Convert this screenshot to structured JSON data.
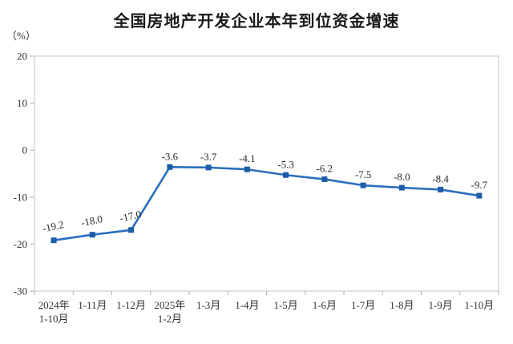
{
  "chart": {
    "title": "全国房地产开发企业本年到位资金增速",
    "unit": "（%）"
  },
  "chart_data": {
    "type": "line",
    "title": "全国房地产开发企业本年到位资金增速",
    "ylabel_unit": "（%）",
    "categories": [
      "2024年\n1-10月",
      "1-11月",
      "1-12月",
      "2025年\n1-2月",
      "1-3月",
      "1-4月",
      "1-5月",
      "1-6月",
      "1-7月",
      "1-8月",
      "1-9月",
      "1-10月"
    ],
    "values": [
      -19.2,
      -18.0,
      -17.0,
      -3.6,
      -3.7,
      -4.1,
      -5.3,
      -6.2,
      -7.5,
      -8.0,
      -8.4,
      -9.7
    ],
    "value_labels": [
      "-19.2",
      "-18.0",
      "-17.0",
      "-3.6",
      "-3.7",
      "-4.1",
      "-5.3",
      "-6.2",
      "-7.5",
      "-8.0",
      "-8.4",
      "-9.7"
    ],
    "rotated_label_count": 3,
    "ylim": [
      -30,
      20
    ],
    "yticks": [
      20,
      10,
      0,
      -10,
      -20,
      -30
    ],
    "grid": false,
    "legend": "none",
    "line_color": "#2a6fbe",
    "marker_color": "#1d5ca8",
    "axis_color": "#c4c4c4",
    "tick_color": "#a9b0b6",
    "text_color": "#333333"
  }
}
